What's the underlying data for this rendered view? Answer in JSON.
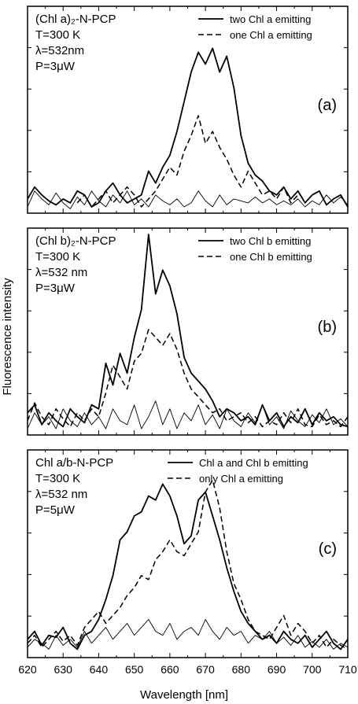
{
  "figure": {
    "ylabel": "Fluorescence intensity",
    "xlabel": "Wavelength [nm]"
  },
  "chart_data": [
    {
      "type": "line",
      "panel_label": "(a)",
      "info_lines": [
        "(Chl a)₂-N-PCP",
        "T=300 K",
        "λ=532nm",
        "P=3μW"
      ],
      "legend": [
        "two Chl a emitting",
        "one Chl a emitting"
      ],
      "xlim": [
        620,
        710
      ],
      "ylim": [
        0,
        100
      ],
      "series": [
        {
          "name": "two Chl a emitting",
          "style": "solid-thick",
          "x": [
            620,
            622,
            624,
            626,
            628,
            630,
            632,
            634,
            636,
            638,
            640,
            642,
            644,
            646,
            648,
            650,
            652,
            654,
            656,
            658,
            660,
            662,
            664,
            666,
            668,
            670,
            672,
            674,
            676,
            678,
            680,
            682,
            684,
            686,
            688,
            690,
            692,
            694,
            696,
            698,
            700,
            702,
            704,
            706,
            708,
            710
          ],
          "y": [
            6,
            12,
            8,
            5,
            3,
            6,
            4,
            10,
            8,
            2,
            4,
            10,
            14,
            8,
            4,
            6,
            8,
            20,
            14,
            22,
            28,
            40,
            55,
            70,
            80,
            74,
            82,
            70,
            78,
            62,
            38,
            24,
            18,
            15,
            10,
            8,
            12,
            6,
            10,
            4,
            8,
            10,
            3,
            6,
            8,
            2
          ]
        },
        {
          "name": "one Chl a emitting",
          "style": "dashed",
          "x": [
            634,
            636,
            638,
            640,
            642,
            644,
            646,
            648,
            650,
            652,
            654,
            656,
            658,
            660,
            662,
            664,
            666,
            668,
            670,
            672,
            674,
            676,
            678,
            680,
            682,
            684,
            686,
            688,
            690,
            692,
            694,
            696
          ],
          "y": [
            4,
            8,
            2,
            6,
            10,
            4,
            8,
            12,
            8,
            2,
            6,
            10,
            16,
            22,
            18,
            30,
            38,
            48,
            34,
            40,
            32,
            26,
            18,
            12,
            20,
            14,
            8,
            10,
            6,
            12,
            4,
            8
          ]
        },
        {
          "name": "",
          "style": "solid-thin",
          "x": [
            620,
            622,
            624,
            626,
            628,
            630,
            632,
            634,
            636,
            638,
            640,
            642,
            644,
            646,
            648,
            650,
            652,
            654,
            656,
            658,
            660,
            662,
            664,
            666,
            668,
            670,
            672,
            674,
            676,
            678,
            680,
            682,
            684,
            686,
            688,
            690,
            692,
            694,
            696,
            698,
            700,
            702,
            704,
            706,
            708,
            710
          ],
          "y": [
            2,
            10,
            6,
            3,
            9,
            4,
            1,
            7,
            3,
            10,
            5,
            2,
            8,
            4,
            10,
            3,
            6,
            2,
            8,
            5,
            3,
            6,
            2,
            4,
            10,
            5,
            2,
            8,
            3,
            6,
            5,
            4,
            7,
            4,
            6,
            3,
            5,
            3,
            6,
            2,
            5,
            3,
            8,
            4,
            7,
            3
          ]
        }
      ]
    },
    {
      "type": "line",
      "panel_label": "(b)",
      "info_lines": [
        "(Chl b)₂-N-PCP",
        "T=300 K",
        "λ=532 nm",
        "P=3μW"
      ],
      "legend": [
        "two Chl b emitting",
        "one Chl b emitting"
      ],
      "xlim": [
        620,
        710
      ],
      "ylim": [
        0,
        100
      ],
      "series": [
        {
          "name": "two Chl b emitting",
          "style": "solid-thick",
          "x": [
            620,
            622,
            624,
            626,
            628,
            630,
            632,
            634,
            636,
            638,
            640,
            642,
            644,
            646,
            648,
            650,
            652,
            654,
            656,
            658,
            660,
            662,
            664,
            666,
            668,
            670,
            672,
            674,
            676,
            678,
            680,
            682,
            684,
            686,
            688,
            690,
            692,
            694,
            696,
            698,
            700,
            702,
            704,
            706,
            708,
            710
          ],
          "y": [
            10,
            14,
            4,
            10,
            6,
            3,
            12,
            8,
            5,
            14,
            12,
            35,
            24,
            40,
            30,
            48,
            62,
            100,
            70,
            82,
            74,
            60,
            38,
            30,
            26,
            22,
            16,
            8,
            12,
            10,
            6,
            8,
            4,
            14,
            6,
            10,
            3,
            8,
            5,
            12,
            4,
            10,
            6,
            8,
            4,
            3
          ]
        },
        {
          "name": "one Chl b emitting",
          "style": "dashed",
          "x": [
            620,
            622,
            624,
            626,
            628,
            630,
            632,
            634,
            636,
            638,
            640,
            642,
            644,
            646,
            648,
            650,
            652,
            654,
            656,
            658,
            660,
            662,
            664,
            666,
            668,
            670,
            672,
            674,
            676,
            678,
            680,
            682,
            684,
            686,
            688,
            690,
            692,
            694,
            696,
            698,
            700,
            702,
            704,
            706,
            708,
            710
          ],
          "y": [
            6,
            15,
            8,
            4,
            12,
            7,
            3,
            10,
            6,
            12,
            8,
            20,
            34,
            28,
            22,
            36,
            40,
            52,
            48,
            44,
            50,
            42,
            30,
            22,
            18,
            14,
            10,
            12,
            6,
            8,
            10,
            5,
            8,
            3,
            6,
            4,
            10,
            5,
            12,
            4,
            3,
            9,
            4,
            6,
            3,
            8
          ]
        },
        {
          "name": "",
          "style": "solid-thin",
          "x": [
            620,
            622,
            624,
            626,
            628,
            630,
            632,
            634,
            636,
            638,
            640,
            642,
            644,
            646,
            648,
            650,
            652,
            654,
            656,
            658,
            660,
            662,
            664,
            666,
            668,
            670,
            672,
            674,
            676,
            678,
            680,
            682,
            684,
            686,
            688,
            690,
            692,
            694,
            696,
            698,
            700,
            702,
            704,
            706,
            708,
            710
          ],
          "y": [
            2,
            10,
            4,
            8,
            2,
            12,
            6,
            3,
            10,
            4,
            8,
            2,
            12,
            6,
            4,
            14,
            2,
            8,
            16,
            4,
            12,
            2,
            10,
            6,
            14,
            4,
            9,
            2,
            12,
            6,
            3,
            10,
            5,
            14,
            4,
            8,
            2,
            11,
            6,
            3,
            9,
            5,
            12,
            4,
            7,
            3
          ]
        }
      ]
    },
    {
      "type": "line",
      "panel_label": "(c)",
      "info_lines": [
        "Chl a/b-N-PCP",
        "T=300 K",
        "λ=532 nm",
        "P=5μW"
      ],
      "legend": [
        "Chl a and Chl b emitting",
        "only Chl a emitting"
      ],
      "xlim": [
        620,
        710
      ],
      "ylim": [
        0,
        100
      ],
      "series": [
        {
          "name": "Chl a and Chl b emitting",
          "style": "solid-thick",
          "x": [
            620,
            622,
            624,
            626,
            628,
            630,
            632,
            634,
            636,
            638,
            640,
            642,
            644,
            646,
            648,
            650,
            652,
            654,
            656,
            658,
            660,
            662,
            664,
            666,
            668,
            670,
            672,
            674,
            676,
            678,
            680,
            682,
            684,
            686,
            688,
            690,
            692,
            694,
            696,
            698,
            700,
            702,
            704,
            706,
            708,
            710
          ],
          "y": [
            8,
            12,
            5,
            10,
            9,
            14,
            6,
            3,
            10,
            12,
            18,
            28,
            40,
            58,
            62,
            70,
            72,
            80,
            78,
            86,
            80,
            70,
            56,
            60,
            78,
            82,
            70,
            58,
            44,
            32,
            22,
            16,
            12,
            8,
            10,
            6,
            12,
            8,
            6,
            10,
            4,
            8,
            12,
            6,
            3,
            8
          ]
        },
        {
          "name": "only Chl a emitting",
          "style": "dashed",
          "x": [
            620,
            622,
            624,
            626,
            628,
            630,
            632,
            634,
            636,
            638,
            640,
            642,
            644,
            646,
            648,
            650,
            652,
            654,
            656,
            658,
            660,
            662,
            664,
            666,
            668,
            670,
            672,
            674,
            676,
            678,
            680,
            682,
            684,
            686,
            688,
            690,
            692,
            694,
            696,
            698,
            700,
            702,
            704,
            706,
            708,
            710
          ],
          "y": [
            6,
            10,
            4,
            8,
            12,
            7,
            10,
            5,
            14,
            18,
            22,
            16,
            20,
            24,
            30,
            34,
            40,
            38,
            48,
            52,
            58,
            52,
            50,
            56,
            62,
            82,
            88,
            74,
            52,
            36,
            28,
            18,
            12,
            10,
            8,
            14,
            20,
            10,
            16,
            12,
            6,
            10,
            4,
            8,
            5,
            3
          ]
        },
        {
          "name": "",
          "style": "solid-thin",
          "x": [
            620,
            622,
            624,
            626,
            628,
            630,
            632,
            634,
            636,
            638,
            640,
            642,
            644,
            646,
            648,
            650,
            652,
            654,
            656,
            658,
            660,
            662,
            664,
            666,
            668,
            670,
            672,
            674,
            676,
            678,
            680,
            682,
            684,
            686,
            688,
            690,
            692,
            694,
            696,
            698,
            700,
            702,
            704,
            706,
            708,
            710
          ],
          "y": [
            4,
            8,
            6,
            3,
            10,
            5,
            8,
            4,
            12,
            6,
            10,
            14,
            8,
            12,
            16,
            10,
            14,
            18,
            12,
            10,
            16,
            8,
            12,
            14,
            10,
            18,
            12,
            8,
            14,
            10,
            12,
            6,
            10,
            8,
            12,
            6,
            9,
            5,
            10,
            4,
            7,
            4,
            8,
            3,
            6,
            4
          ]
        }
      ]
    }
  ],
  "x_axis": {
    "ticks": [
      620,
      630,
      640,
      650,
      660,
      670,
      680,
      690,
      700,
      710
    ],
    "tick_labels": [
      "620",
      "630",
      "640",
      "650",
      "660",
      "670",
      "680",
      "690",
      "700",
      "710"
    ]
  }
}
